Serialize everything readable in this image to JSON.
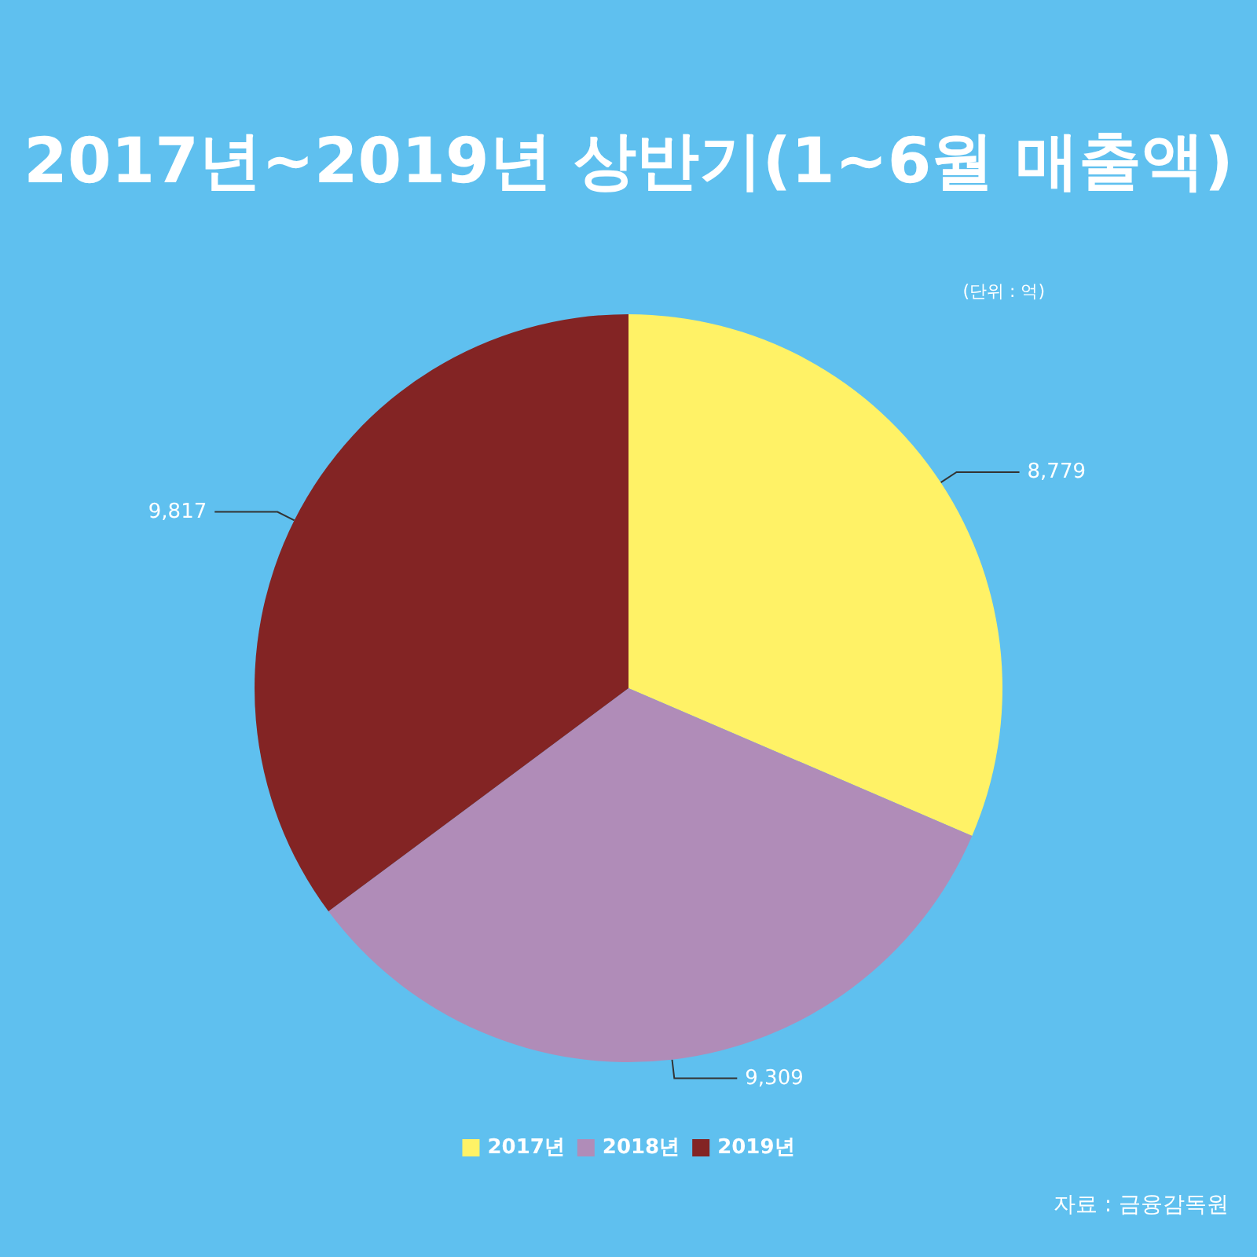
{
  "chart_data": {
    "type": "pie",
    "title": "2017년~2019년 상반기(1~6월 매출액)",
    "categories": [
      "2017년",
      "2018년",
      "2019년"
    ],
    "values": [
      8779,
      9309,
      9817
    ],
    "colors": [
      "#fff266",
      "#b08cb8",
      "#832424"
    ],
    "value_labels": [
      "8,779",
      "9,309",
      "9,817"
    ],
    "legend": "bottom",
    "annotations": [
      "(단위 : 억)",
      "자료 : 금융감독원"
    ]
  }
}
